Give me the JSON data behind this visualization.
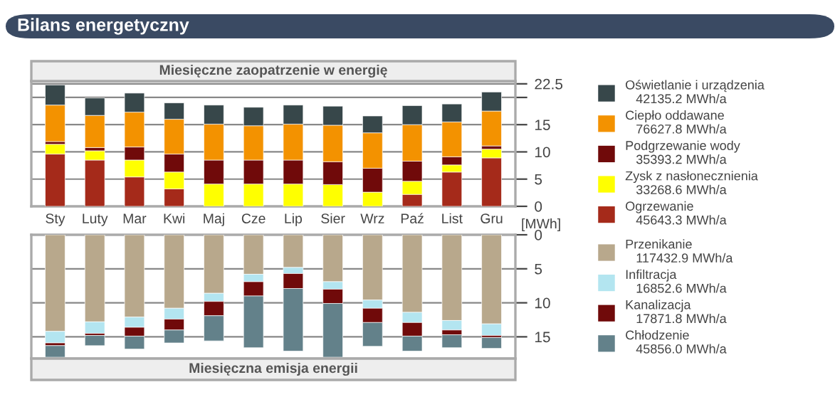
{
  "chart_data": [
    {
      "type": "bar",
      "stacked": true,
      "title": "Bilans energetyczny",
      "subtitle": "Miesięczne zaopatrzenie w energię",
      "ylabel": "[MWh]",
      "categories": [
        "Sty",
        "Luty",
        "Mar",
        "Kwi",
        "Maj",
        "Cze",
        "Lip",
        "Sier",
        "Wrz",
        "Paź",
        "List",
        "Gru"
      ],
      "ylim": [
        0,
        23
      ],
      "yticks": [
        0,
        5,
        10,
        15,
        {
          "value": 20,
          "label": null
        },
        22.5
      ],
      "grid": "y",
      "legend": "right",
      "series": [
        {
          "name": "Ogrzewanie",
          "color": "#a52a1a",
          "values": [
            9.6,
            8.5,
            5.4,
            3.2,
            0,
            0,
            0,
            0,
            0,
            2.2,
            6.3,
            8.9
          ]
        },
        {
          "name": "Zysk z nasłonecznienia",
          "color": "#ffff00",
          "values": [
            1.8,
            1.7,
            3.1,
            3.1,
            4.1,
            4.1,
            4.1,
            4.0,
            2.6,
            2.4,
            1.3,
            1.6
          ]
        },
        {
          "name": "Podgrzewanie wody",
          "color": "#700a0a",
          "values": [
            0.5,
            0.6,
            2.4,
            3.3,
            4.4,
            4.4,
            4.4,
            4.2,
            4.4,
            3.7,
            1.5,
            0.6
          ]
        },
        {
          "name": "Ciepło oddawane",
          "color": "#f39200",
          "values": [
            6.7,
            5.9,
            6.4,
            6.4,
            6.6,
            6.3,
            6.6,
            6.7,
            6.5,
            6.7,
            6.4,
            6.4
          ]
        },
        {
          "name": "Oświetlanie i urządzenia",
          "color": "#37474a",
          "values": [
            3.7,
            3.2,
            3.5,
            3.0,
            3.5,
            3.4,
            3.5,
            3.5,
            3.1,
            3.5,
            3.3,
            3.5
          ]
        }
      ],
      "annotations": [
        "45643.3 MWh/a",
        "33268.6 MWh/a",
        "35393.2 MWh/a",
        "76627.8 MWh/a",
        "42135.2 MWh/a"
      ]
    },
    {
      "type": "bar",
      "stacked": true,
      "title": "Miesięczna emisja energii",
      "categories": [
        null,
        null,
        null,
        null,
        null,
        null,
        null,
        null,
        null,
        null,
        null,
        null
      ],
      "tick_labels": "y",
      "ylim": [
        18.2,
        0
      ],
      "yticks": [
        0,
        5,
        10,
        15
      ],
      "grid": "y",
      "legend": "right",
      "series": [
        {
          "name": "Przenikanie",
          "color": "#b8a88c",
          "values": [
            14.2,
            12.8,
            12.1,
            10.8,
            8.6,
            5.8,
            4.8,
            6.9,
            9.6,
            11.4,
            12.6,
            13.1
          ]
        },
        {
          "name": "Infiltracja",
          "color": "#b3e5f0",
          "values": [
            1.7,
            1.7,
            1.5,
            1.6,
            1.2,
            1.1,
            0.9,
            1.1,
            1.2,
            1.5,
            1.4,
            1.7
          ]
        },
        {
          "name": "Kanalizacja",
          "color": "#700a0a",
          "values": [
            0.4,
            0.3,
            1.3,
            1.6,
            2.1,
            2.1,
            2.2,
            2.1,
            2.1,
            2.0,
            0.7,
            0.3
          ]
        },
        {
          "name": "Chłodzenie",
          "color": "#63818a",
          "values": [
            1.7,
            1.5,
            1.9,
            1.9,
            3.7,
            7.6,
            9.2,
            7.9,
            3.5,
            2.2,
            1.9,
            1.6
          ]
        }
      ],
      "annotations": [
        "117432.9 MWh/a",
        "16852.6 MWh/a",
        "17871.8 MWh/a",
        "45856.0 MWh/a"
      ]
    }
  ]
}
